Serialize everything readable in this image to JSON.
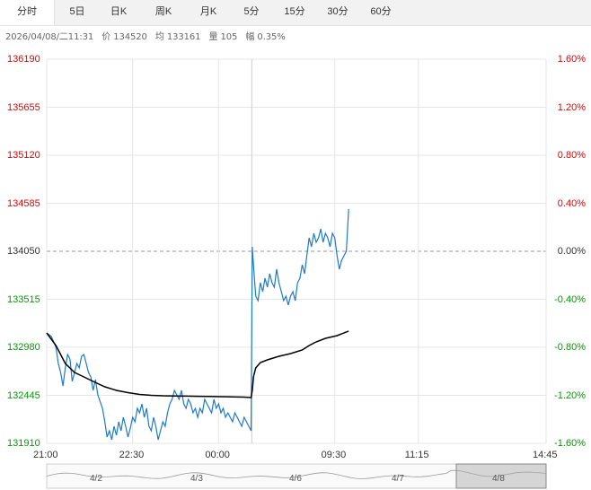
{
  "tabs": [
    "分时",
    "5日",
    "日K",
    "周K",
    "月K",
    "5分",
    "15分",
    "30分",
    "60分"
  ],
  "active_tab": "分时",
  "info": {
    "datetime": "2026/04/08/二11:31",
    "price": "价 134520",
    "avg": "均 133161",
    "volume": "量 105",
    "change": "幅 0.35%"
  },
  "colors": {
    "up": "#e60000",
    "down": "#009900",
    "flat": "#333333",
    "price_line": "#1e7bc8",
    "avg_line": "#000000",
    "grid": "#e6e6e6",
    "nav_fill": "#b0b0b0"
  },
  "chart_data": {
    "type": "line",
    "reference_price": 134050,
    "y_ticks_left": [
      "136190",
      "135655",
      "135120",
      "134585",
      "134050",
      "133515",
      "132980",
      "132445",
      "131910"
    ],
    "y_ticks_right": [
      "1.60%",
      "1.20%",
      "0.80%",
      "0.40%",
      "0.00%",
      "-0.40%",
      "-0.80%",
      "-1.20%",
      "-1.60%"
    ],
    "x_ticks": [
      "21:00",
      "22:30",
      "00:00",
      "09:30",
      "11:15",
      "14:45"
    ],
    "ylim": [
      131910,
      136190
    ],
    "series": [
      {
        "name": "price",
        "points": [
          [
            0,
            133140
          ],
          [
            2,
            133100
          ],
          [
            4,
            132980
          ],
          [
            5,
            132800
          ],
          [
            6,
            132700
          ],
          [
            7,
            132550
          ],
          [
            8,
            132750
          ],
          [
            9,
            132900
          ],
          [
            10,
            132850
          ],
          [
            11,
            132600
          ],
          [
            12,
            132700
          ],
          [
            13,
            132800
          ],
          [
            14,
            132750
          ],
          [
            15,
            132880
          ],
          [
            16,
            132900
          ],
          [
            17,
            132800
          ],
          [
            18,
            132700
          ],
          [
            19,
            132650
          ],
          [
            20,
            132500
          ],
          [
            21,
            132620
          ],
          [
            22,
            132450
          ],
          [
            24,
            132300
          ],
          [
            25,
            132150
          ],
          [
            26,
            131980
          ],
          [
            27,
            132050
          ],
          [
            28,
            131950
          ],
          [
            29,
            132100
          ],
          [
            30,
            132000
          ],
          [
            31,
            132150
          ],
          [
            32,
            132050
          ],
          [
            33,
            132200
          ],
          [
            34,
            132100
          ],
          [
            35,
            131980
          ],
          [
            36,
            132080
          ],
          [
            37,
            132200
          ],
          [
            38,
            132150
          ],
          [
            39,
            132300
          ],
          [
            40,
            132250
          ],
          [
            41,
            132350
          ],
          [
            42,
            132200
          ],
          [
            43,
            132300
          ],
          [
            44,
            132100
          ],
          [
            45,
            132050
          ],
          [
            46,
            132200
          ],
          [
            47,
            132100
          ],
          [
            48,
            131950
          ],
          [
            49,
            132050
          ],
          [
            50,
            132150
          ],
          [
            51,
            132100
          ],
          [
            52,
            132250
          ],
          [
            53,
            132350
          ],
          [
            54,
            132400
          ],
          [
            55,
            132500
          ],
          [
            56,
            132450
          ],
          [
            57,
            132400
          ],
          [
            58,
            132500
          ],
          [
            59,
            132350
          ],
          [
            60,
            132300
          ],
          [
            61,
            132400
          ],
          [
            62,
            132350
          ],
          [
            63,
            132250
          ],
          [
            64,
            132300
          ],
          [
            65,
            132200
          ],
          [
            66,
            132300
          ],
          [
            67,
            132250
          ],
          [
            68,
            132400
          ],
          [
            69,
            132350
          ],
          [
            70,
            132300
          ],
          [
            71,
            132250
          ],
          [
            72,
            132400
          ],
          [
            73,
            132300
          ],
          [
            74,
            132350
          ],
          [
            75,
            132250
          ],
          [
            76,
            132300
          ],
          [
            77,
            132200
          ],
          [
            78,
            132250
          ],
          [
            79,
            132200
          ],
          [
            80,
            132150
          ],
          [
            81,
            132250
          ],
          [
            82,
            132200
          ],
          [
            83,
            132150
          ],
          [
            84,
            132100
          ],
          [
            85,
            132200
          ],
          [
            86,
            132150
          ],
          [
            87,
            132100
          ],
          [
            88,
            132050
          ],
          [
            88.5,
            134100
          ],
          [
            89,
            133900
          ],
          [
            90,
            133550
          ],
          [
            91,
            133500
          ],
          [
            92,
            133700
          ],
          [
            93,
            133600
          ],
          [
            94,
            133750
          ],
          [
            95,
            133650
          ],
          [
            96,
            133800
          ],
          [
            97,
            133700
          ],
          [
            98,
            133650
          ],
          [
            99,
            133850
          ],
          [
            100,
            133700
          ],
          [
            101,
            133600
          ],
          [
            102,
            133500
          ],
          [
            103,
            133550
          ],
          [
            104,
            133450
          ],
          [
            105,
            133550
          ],
          [
            106,
            133600
          ],
          [
            107,
            133500
          ],
          [
            108,
            133700
          ],
          [
            109,
            133750
          ],
          [
            110,
            133900
          ],
          [
            111,
            133800
          ],
          [
            112,
            134000
          ],
          [
            113,
            134200
          ],
          [
            114,
            134100
          ],
          [
            115,
            134250
          ],
          [
            116,
            134150
          ],
          [
            117,
            134200
          ],
          [
            118,
            134300
          ],
          [
            119,
            134150
          ],
          [
            120,
            134250
          ],
          [
            121,
            134200
          ],
          [
            122,
            134100
          ],
          [
            123,
            134250
          ],
          [
            124,
            134200
          ],
          [
            125,
            134000
          ],
          [
            126,
            133850
          ],
          [
            127,
            133950
          ],
          [
            128,
            134000
          ],
          [
            129,
            134050
          ],
          [
            130,
            134520
          ]
        ]
      },
      {
        "name": "avg",
        "points": [
          [
            0,
            133140
          ],
          [
            4,
            133000
          ],
          [
            8,
            132800
          ],
          [
            12,
            132700
          ],
          [
            16,
            132650
          ],
          [
            20,
            132600
          ],
          [
            25,
            132540
          ],
          [
            30,
            132500
          ],
          [
            35,
            132475
          ],
          [
            40,
            132455
          ],
          [
            45,
            132445
          ],
          [
            50,
            132440
          ],
          [
            55,
            132438
          ],
          [
            60,
            132436
          ],
          [
            65,
            132434
          ],
          [
            70,
            132432
          ],
          [
            75,
            132430
          ],
          [
            80,
            132428
          ],
          [
            85,
            132425
          ],
          [
            88,
            132420
          ],
          [
            88.5,
            132500
          ],
          [
            89,
            132650
          ],
          [
            90,
            132750
          ],
          [
            92,
            132810
          ],
          [
            95,
            132840
          ],
          [
            100,
            132880
          ],
          [
            105,
            132910
          ],
          [
            110,
            132950
          ],
          [
            113,
            133000
          ],
          [
            116,
            133040
          ],
          [
            120,
            133080
          ],
          [
            125,
            133110
          ],
          [
            130,
            133161
          ]
        ]
      }
    ],
    "navigator": {
      "labels": [
        "4/2",
        "4/3",
        "4/6",
        "4/7",
        "4/8"
      ]
    }
  }
}
